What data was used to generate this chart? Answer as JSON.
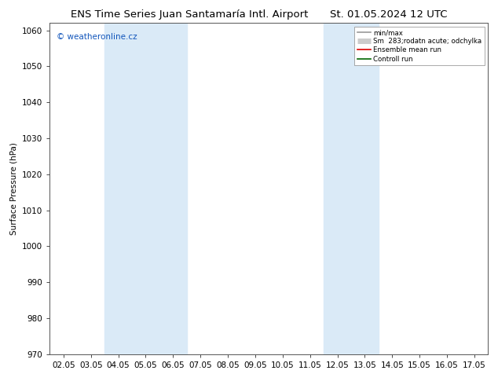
{
  "title_left": "ENS Time Series Juan Santamaría Intl. Airport",
  "title_right": "St. 01.05.2024 12 UTC",
  "ylabel": "Surface Pressure (hPa)",
  "ylim": [
    970,
    1062
  ],
  "yticks": [
    970,
    980,
    990,
    1000,
    1010,
    1020,
    1030,
    1040,
    1050,
    1060
  ],
  "xtick_labels": [
    "02.05",
    "03.05",
    "04.05",
    "05.05",
    "06.05",
    "07.05",
    "08.05",
    "09.05",
    "10.05",
    "11.05",
    "12.05",
    "13.05",
    "14.05",
    "15.05",
    "16.05",
    "17.05"
  ],
  "shaded_bands": [
    {
      "xstart": 2,
      "xend": 4,
      "color": "#daeaf7"
    },
    {
      "xstart": 10,
      "xend": 11,
      "color": "#daeaf7"
    }
  ],
  "legend_entries": [
    {
      "label": "min/max",
      "color": "#999999",
      "lw": 1.2
    },
    {
      "label": "Sm  283;rodatn acute; odchylka",
      "color": "#cccccc",
      "lw": 5
    },
    {
      "label": "Ensemble mean run",
      "color": "#dd0000",
      "lw": 1.2
    },
    {
      "label": "Controll run",
      "color": "#006600",
      "lw": 1.2
    }
  ],
  "watermark": "© weatheronline.cz",
  "background_color": "#ffffff",
  "plot_bg_color": "#ffffff",
  "title_fontsize": 9.5,
  "axis_fontsize": 7.5,
  "tick_fontsize": 7.5,
  "grid_color": "#dddddd",
  "border_color": "#555555"
}
